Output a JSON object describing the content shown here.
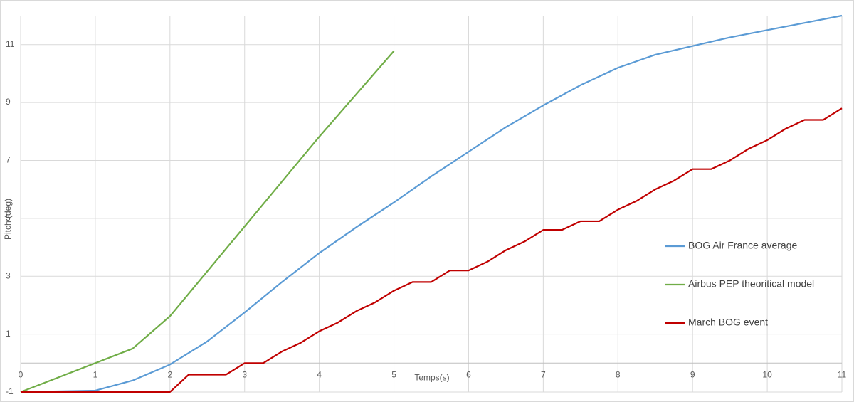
{
  "chart_data": {
    "type": "line",
    "x_label": "Temps(s)",
    "y_label": "Pitch (deg)",
    "xlim": [
      0,
      11
    ],
    "xticks": [
      0,
      1,
      2,
      3,
      4,
      5,
      6,
      7,
      8,
      9,
      10,
      11
    ],
    "ylim": [
      -1,
      12
    ],
    "yticks": [
      -1,
      1,
      3,
      5,
      7,
      9,
      11
    ],
    "grid": true,
    "legend": "right",
    "series": [
      {
        "name": "BOG Air France average",
        "color": "#5b9bd5",
        "x": [
          0,
          1,
          1.5,
          2,
          2.5,
          3,
          3.5,
          4,
          4.5,
          5,
          5.5,
          6,
          6.5,
          7,
          7.5,
          8,
          8.5,
          9,
          9.5,
          10,
          10.5,
          11
        ],
        "values": [
          -1,
          -0.95,
          -0.6,
          -0.05,
          0.75,
          1.75,
          2.8,
          3.8,
          4.7,
          5.55,
          6.45,
          7.3,
          8.15,
          8.9,
          9.6,
          10.2,
          10.65,
          10.95,
          11.25,
          11.5,
          11.75,
          12
        ]
      },
      {
        "name": "Airbus PEP theoritical model",
        "color": "#70ad47",
        "x": [
          0,
          1,
          1.5,
          2,
          3,
          4,
          5
        ],
        "values": [
          -1,
          0,
          0.5,
          1.62,
          4.72,
          7.82,
          10.78
        ]
      },
      {
        "name": "March BOG event",
        "color": "#c00000",
        "x": [
          0,
          2,
          2.25,
          2.75,
          3,
          3.25,
          3.5,
          3.75,
          4,
          4.25,
          4.5,
          4.75,
          5,
          5.25,
          5.5,
          5.75,
          6,
          6.25,
          6.5,
          6.75,
          7,
          7.25,
          7.5,
          7.75,
          8,
          8.25,
          8.5,
          8.75,
          9,
          9.25,
          9.5,
          9.75,
          10,
          10.25,
          10.5,
          10.75,
          11
        ],
        "values": [
          -1,
          -1,
          -0.4,
          -0.4,
          0,
          0,
          0.4,
          0.7,
          1.1,
          1.4,
          1.8,
          2.1,
          2.5,
          2.8,
          2.8,
          3.2,
          3.2,
          3.5,
          3.9,
          4.2,
          4.6,
          4.6,
          4.9,
          4.9,
          5.3,
          5.6,
          6.0,
          6.3,
          6.7,
          6.7,
          7.0,
          7.4,
          7.7,
          8.1,
          8.4,
          8.4,
          8.8
        ]
      }
    ]
  }
}
